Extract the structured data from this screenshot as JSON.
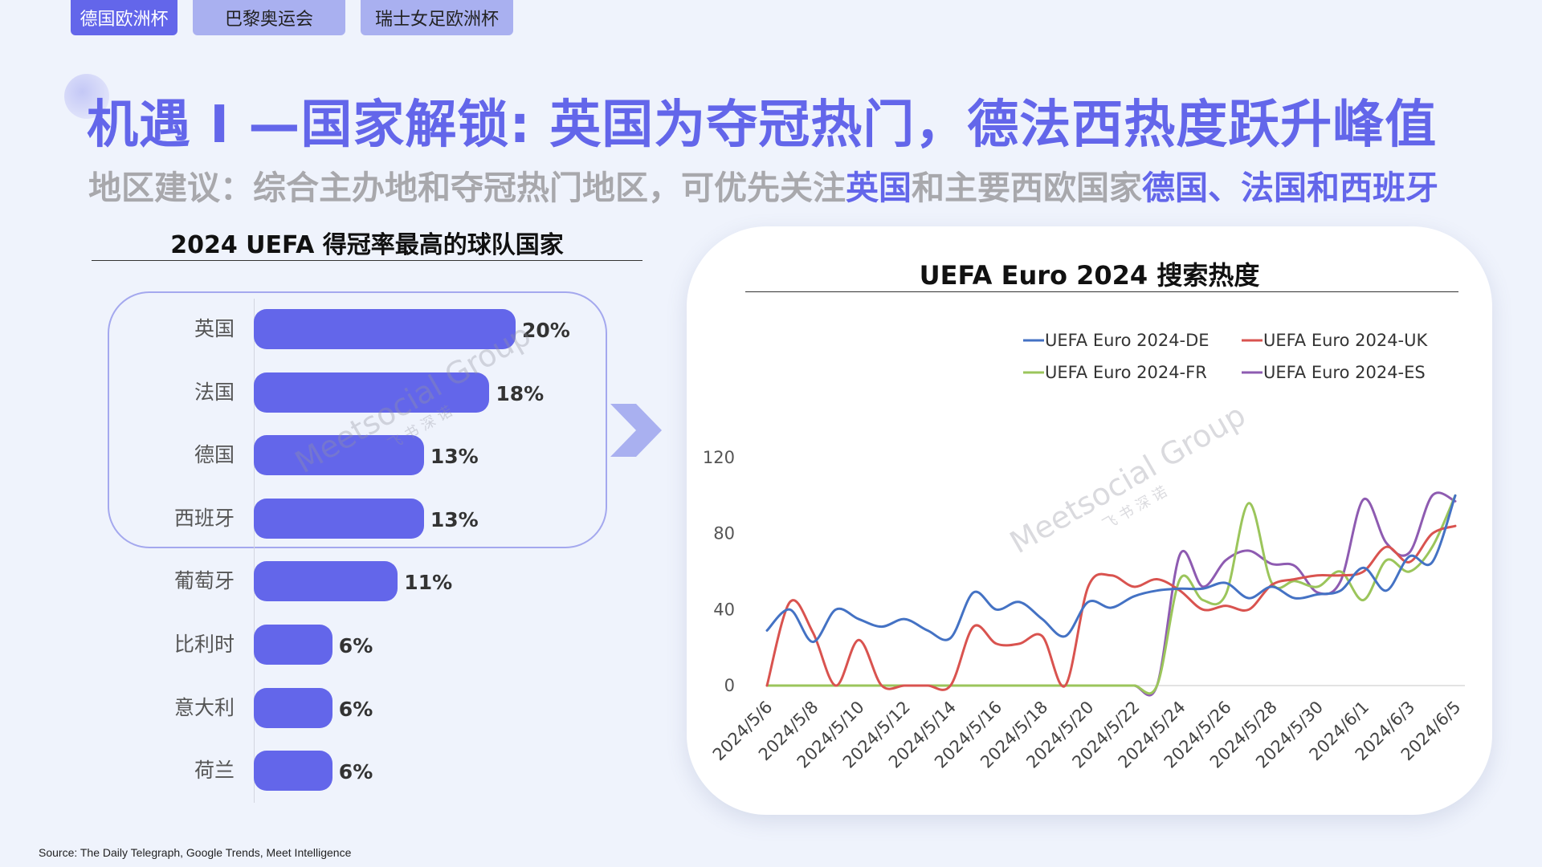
{
  "tabs": [
    {
      "label": "德国欧洲杯",
      "active": true
    },
    {
      "label": "巴黎奥运会",
      "active": false
    },
    {
      "label": "瑞士女足欧洲杯",
      "active": false
    }
  ],
  "headline": "机遇 I —国家解锁: 英国为夺冠热门，德法西热度跃升峰值",
  "subline": {
    "p1": "地区建议：综合主办地和夺冠热门地区，可优先关注",
    "h1": "英国",
    "p2": "和主要西欧国家",
    "h2": "德国、法国和西班牙"
  },
  "watermark": {
    "text": "Meetsocial Group",
    "sub": "飞 书 深 诺"
  },
  "source": "Source: The Daily Telegraph,  Google Trends, Meet Intelligence",
  "colors": {
    "accent": "#6366ea",
    "DE": "#4472c4",
    "UK": "#d9534f",
    "FR": "#9bc55b",
    "ES": "#8e5bb1"
  },
  "chart_data": [
    {
      "type": "bar",
      "orientation": "horizontal",
      "title": "2024 UEFA 得冠率最高的球队国家",
      "categories": [
        "英国",
        "法国",
        "德国",
        "西班牙",
        "葡萄牙",
        "比利时",
        "意大利",
        "荷兰"
      ],
      "values": [
        20,
        18,
        13,
        13,
        11,
        6,
        6,
        6
      ],
      "value_labels": [
        "20%",
        "18%",
        "13%",
        "13%",
        "11%",
        "6%",
        "6%",
        "6%"
      ],
      "highlighted_top": 4
    },
    {
      "type": "line",
      "title": "UEFA Euro 2024 搜索热度",
      "x_tick_labels": [
        "2024/5/6",
        "2024/5/8",
        "2024/5/10",
        "2024/5/12",
        "2024/5/14",
        "2024/5/16",
        "2024/5/18",
        "2024/5/20",
        "2024/5/22",
        "2024/5/24",
        "2024/5/26",
        "2024/5/28",
        "2024/5/30",
        "2024/6/1",
        "2024/6/3",
        "2024/6/5"
      ],
      "y_ticks": [
        0,
        40,
        80,
        120
      ],
      "ylim": [
        0,
        120
      ],
      "legend_position": "top-right",
      "series": [
        {
          "name": "UEFA Euro 2024-DE",
          "color": "#4472c4",
          "values": [
            29,
            40,
            23,
            40,
            35,
            31,
            35,
            29,
            25,
            49,
            40,
            44,
            35,
            26,
            44,
            41,
            47,
            50,
            51,
            51,
            54,
            46,
            52,
            46,
            48,
            50,
            62,
            50,
            68,
            65,
            100
          ]
        },
        {
          "name": "UEFA Euro 2024-UK",
          "color": "#d9534f",
          "values": [
            0,
            44,
            28,
            0,
            24,
            0,
            0,
            0,
            0,
            31,
            22,
            22,
            26,
            0,
            52,
            58,
            52,
            56,
            50,
            40,
            42,
            40,
            53,
            56,
            58,
            58,
            60,
            73,
            65,
            80,
            84
          ]
        },
        {
          "name": "UEFA Euro 2024-FR",
          "color": "#9bc55b",
          "values": [
            0,
            0,
            0,
            0,
            0,
            0,
            0,
            0,
            0,
            0,
            0,
            0,
            0,
            0,
            0,
            0,
            0,
            0,
            56,
            45,
            48,
            96,
            54,
            55,
            52,
            60,
            45,
            66,
            60,
            73,
            100
          ]
        },
        {
          "name": "UEFA Euro 2024-ES",
          "color": "#8e5bb1",
          "values": [
            0,
            0,
            0,
            0,
            0,
            0,
            0,
            0,
            0,
            0,
            0,
            0,
            0,
            0,
            0,
            0,
            0,
            0,
            69,
            52,
            66,
            71,
            64,
            63,
            49,
            55,
            98,
            75,
            70,
            100,
            97
          ]
        }
      ]
    }
  ]
}
